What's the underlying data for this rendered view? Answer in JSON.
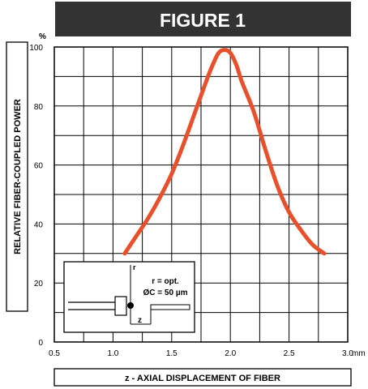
{
  "chart_data": {
    "type": "line",
    "title": "FIGURE 1",
    "xlabel": "z - AXIAL DISPLACEMENT OF FIBER",
    "ylabel": "RELATIVE FIBER-COUPLED POWER",
    "x_unit": "mm",
    "y_unit": "%",
    "xlim": [
      0.5,
      3.0
    ],
    "ylim": [
      0,
      100
    ],
    "x_ticks": [
      "0.5",
      "1.0",
      "1.5",
      "2.0",
      "2.5",
      "3.0"
    ],
    "y_ticks": [
      "0",
      "20",
      "40",
      "60",
      "80",
      "100"
    ],
    "grid": true,
    "series": [
      {
        "color": "#e8502c",
        "x": [
          1.1,
          1.2,
          1.3,
          1.4,
          1.5,
          1.6,
          1.7,
          1.8,
          1.85,
          1.9,
          1.95,
          2.0,
          2.05,
          2.1,
          2.2,
          2.3,
          2.4,
          2.5,
          2.6,
          2.7,
          2.8
        ],
        "y": [
          30,
          36,
          42,
          49,
          57,
          67,
          78,
          89,
          94,
          98,
          99,
          98,
          94,
          88,
          78,
          65,
          53,
          44,
          38,
          33,
          30
        ]
      }
    ]
  },
  "inset": {
    "label_r": "r",
    "label_r_opt": "r = opt.",
    "label_diameter": "ØC = 50 µm",
    "label_z": "z"
  }
}
